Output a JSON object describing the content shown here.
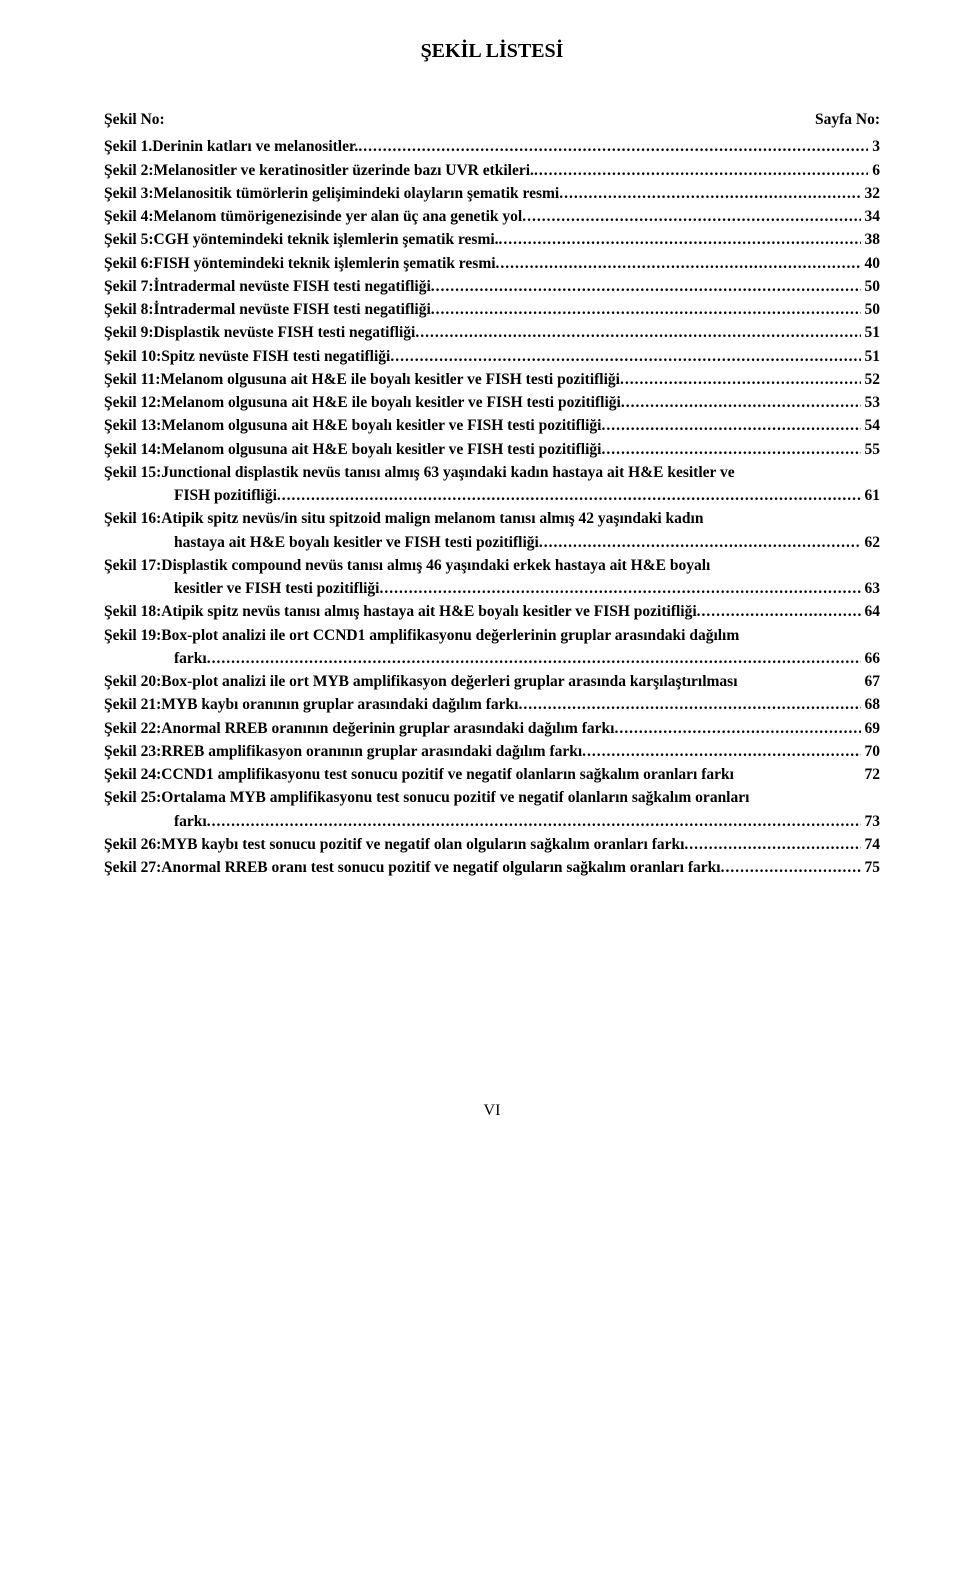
{
  "title": "ŞEKİL LİSTESİ",
  "header_left": "Şekil No:",
  "header_right": "Sayfa No:",
  "entries": [
    {
      "label": "Şekil 1.",
      "text": "Derinin katları ve melanositler.",
      "page": "3"
    },
    {
      "label": "Şekil 2:",
      "text": "Melanositler ve keratinositler üzerinde bazı UVR etkileri.",
      "page": "6"
    },
    {
      "label": "Şekil 3:",
      "text": "Melanositik tümörlerin gelişimindeki olayların şematik resmi",
      "page": "32"
    },
    {
      "label": "Şekil 4:",
      "text": "Melanom tümörigenezisinde yer alan üç ana genetik yol",
      "page": "34"
    },
    {
      "label": "Şekil 5:",
      "text": "CGH yöntemindeki  teknik işlemlerin şematik resmi.",
      "page": "38"
    },
    {
      "label": "Şekil 6:",
      "text": "FISH yöntemindeki teknik işlemlerin şematik resmi",
      "page": "40"
    },
    {
      "label": "Şekil 7:",
      "text": "İntradermal nevüste FISH testi negatifliği",
      "page": "50"
    },
    {
      "label": "Şekil 8:",
      "text": "İntradermal nevüste FISH testi negatifliği",
      "page": "50"
    },
    {
      "label": "Şekil 9:",
      "text": "Displastik nevüste FISH testi negatifliği",
      "page": "51"
    },
    {
      "label": "Şekil 10:",
      "text": "Spitz nevüste FISH testi negatifliği",
      "page": "51"
    },
    {
      "label": "Şekil 11:",
      "text": "Melanom olgusuna ait H&E ile boyalı kesitler ve FISH testi pozitifliği",
      "page": "52"
    },
    {
      "label": "Şekil 12:",
      "text": "Melanom olgusuna ait H&E ile boyalı kesitler ve FISH testi pozitifliği",
      "page": "53"
    },
    {
      "label": "Şekil 13:",
      "text": "Melanom olgusuna ait H&E boyalı kesitler ve FISH testi pozitifliği",
      "page": "54"
    },
    {
      "label": "Şekil 14:",
      "text": "Melanom olgusuna ait H&E boyalı kesitler ve FISH testi pozitifliği",
      "page": "55"
    },
    {
      "label": "Şekil 15:",
      "text_line1": "Junctional displastik nevüs tanısı almış 63 yaşındaki kadın hastaya ait H&E kesitler ve",
      "text_line2": "FISH pozitifliği",
      "page": "61",
      "multi": true
    },
    {
      "label": "Şekil 16:",
      "text_line1": "Atipik spitz nevüs/in situ spitzoid malign melanom tanısı almış 42 yaşındaki kadın",
      "text_line2": "hastaya ait H&E boyalı kesitler ve FISH testi pozitifliği",
      "page": "62",
      "multi": true
    },
    {
      "label": "Şekil 17:",
      "text_line1": "Displastik compound nevüs tanısı almış 46 yaşındaki erkek hastaya ait H&E boyalı",
      "text_line2": "kesitler ve FISH testi pozitifliği",
      "page": "63",
      "multi": true
    },
    {
      "label": "Şekil 18:",
      "text": "Atipik spitz nevüs tanısı almış hastaya ait H&E boyalı kesitler ve FISH pozitifliği",
      "page": "64"
    },
    {
      "label": "Şekil 19:",
      "text_line1": "Box-plot analizi ile ort CCND1 amplifikasyonu değerlerinin gruplar arasındaki dağılım",
      "text_line2": "farkı",
      "page": "66",
      "multi": true
    },
    {
      "label": "Şekil 20:",
      "text": "Box-plot analizi ile ort MYB amplifikasyon değerleri gruplar arasında karşılaştırılması",
      "page": "67",
      "nodots": true
    },
    {
      "label": "Şekil 21:",
      "text": "MYB kaybı oranının gruplar arasındaki dağılım farkı",
      "page": "68"
    },
    {
      "label": "Şekil 22:",
      "text": "Anormal RREB oranının değerinin gruplar arasındaki dağılım farkı",
      "page": "69"
    },
    {
      "label": "Şekil 23:",
      "text": "RREB amplifikasyon oranının gruplar arasındaki dağılım farkı",
      "page": "70"
    },
    {
      "label": "Şekil 24:",
      "text": "CCND1 amplifikasyonu test sonucu pozitif ve negatif olanların sağkalım oranları farkı",
      "page": "72",
      "nodots": true
    },
    {
      "label": "Şekil 25:",
      "text_line1": "Ortalama MYB amplifikasyonu test sonucu pozitif ve negatif olanların sağkalım oranları",
      "text_line2": "farkı",
      "page": "73",
      "multi": true
    },
    {
      "label": "Şekil 26:",
      "text": "MYB kaybı test sonucu pozitif ve negatif olan olguların sağkalım oranları farkı",
      "page": "74"
    },
    {
      "label": "Şekil 27:",
      "text": "Anormal RREB oranı test sonucu pozitif ve negatif olguların sağkalım oranları farkı",
      "page": "75"
    }
  ],
  "footer": "VI"
}
